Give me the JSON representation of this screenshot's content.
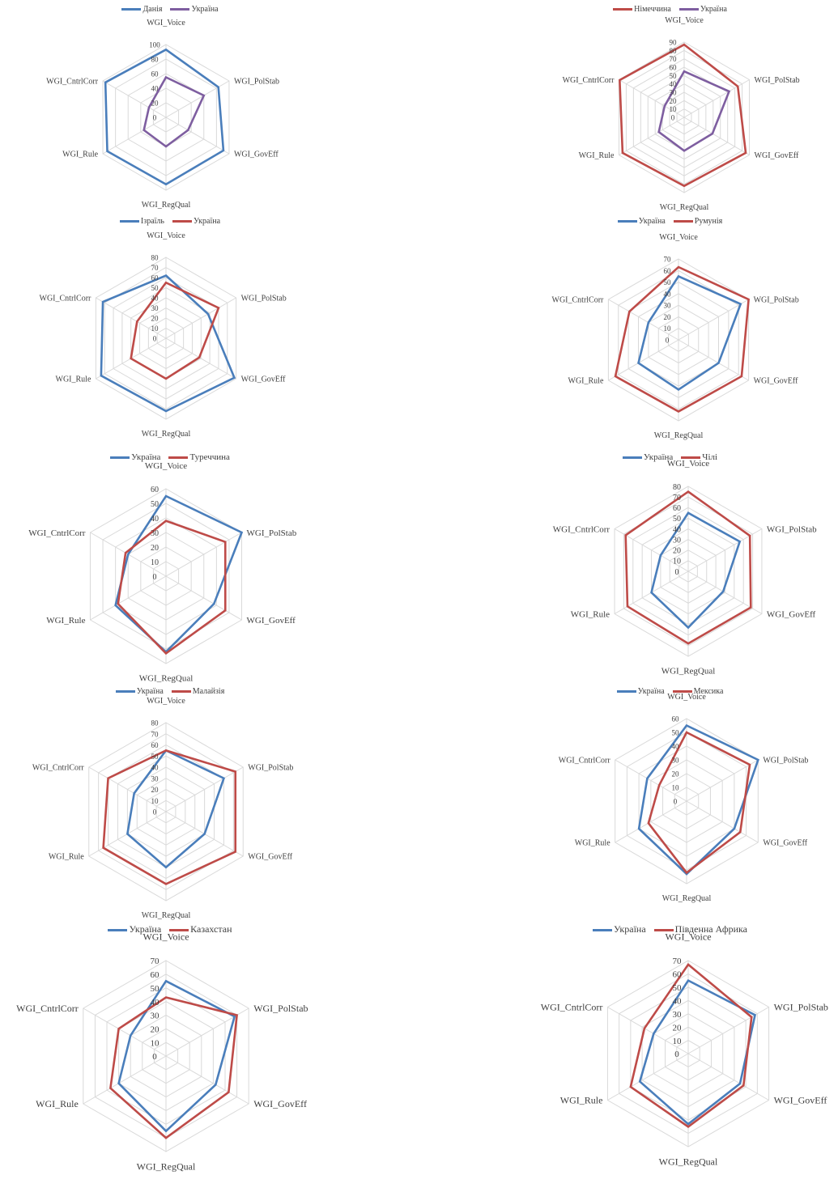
{
  "colors": {
    "blue": "#4a7ebb",
    "red": "#be4b48",
    "purple": "#7e5ea0"
  },
  "chart_data": [
    {
      "type": "radar",
      "axes": [
        "WGI_Voice",
        "WGI_PolStab",
        "WGI_GovEff",
        "WGI_RegQual",
        "WGI_Rule",
        "WGI_CntrlCorr"
      ],
      "rmax": 100,
      "ticks": [
        0,
        20,
        40,
        60,
        80,
        100
      ],
      "legend_position": "top",
      "series": [
        {
          "name": "Данія",
          "color": "#4a7ebb",
          "values": [
            93,
            83,
            91,
            92,
            93,
            96
          ]
        },
        {
          "name": "Україна",
          "color": "#7e5ea0",
          "values": [
            55,
            60,
            35,
            40,
            35,
            27
          ]
        }
      ]
    },
    {
      "type": "radar",
      "axes": [
        "WGI_Voice",
        "WGI_PolStab",
        "WGI_GovEff",
        "WGI_RegQual",
        "WGI_Rule",
        "WGI_CntrlCorr"
      ],
      "rmax": 90,
      "ticks": [
        0,
        10,
        20,
        30,
        40,
        50,
        60,
        70,
        80,
        90
      ],
      "legend_position": "top",
      "series": [
        {
          "name": "Німеччина",
          "color": "#be4b48",
          "values": [
            87,
            74,
            85,
            82,
            85,
            89
          ]
        },
        {
          "name": "Україна",
          "color": "#7e5ea0",
          "values": [
            55,
            62,
            39,
            40,
            35,
            27
          ]
        }
      ]
    },
    {
      "type": "radar",
      "axes": [
        "WGI_Voice",
        "WGI_PolStab",
        "WGI_GovEff",
        "WGI_RegQual",
        "WGI_Rule",
        "WGI_CntrlCorr"
      ],
      "rmax": 80,
      "ticks": [
        0,
        10,
        20,
        30,
        40,
        50,
        60,
        70,
        80
      ],
      "legend_position": "top",
      "series": [
        {
          "name": "Ізраїль",
          "color": "#4a7ebb",
          "values": [
            62,
            48,
            78,
            72,
            74,
            72
          ]
        },
        {
          "name": "Україна",
          "color": "#be4b48",
          "values": [
            55,
            60,
            38,
            40,
            40,
            33
          ]
        }
      ]
    },
    {
      "type": "radar",
      "axes": [
        "WGI_Voice",
        "WGI_PolStab",
        "WGI_GovEff",
        "WGI_RegQual",
        "WGI_Rule",
        "WGI_CntrlCorr"
      ],
      "rmax": 70,
      "ticks": [
        0,
        10,
        20,
        30,
        40,
        50,
        60,
        70
      ],
      "legend_position": "top",
      "series": [
        {
          "name": "Україна",
          "color": "#4a7ebb",
          "values": [
            55,
            62,
            40,
            43,
            40,
            30
          ]
        },
        {
          "name": "Румунія",
          "color": "#be4b48",
          "values": [
            63,
            70,
            63,
            62,
            63,
            49
          ]
        }
      ]
    },
    {
      "type": "radar",
      "axes": [
        "WGI_Voice",
        "WGI_PolStab",
        "WGI_GovEff",
        "WGI_RegQual",
        "WGI_Rule",
        "WGI_CntrlCorr"
      ],
      "rmax": 60,
      "ticks": [
        0,
        10,
        20,
        30,
        40,
        50,
        60
      ],
      "legend_position": "top",
      "series": [
        {
          "name": "Україна",
          "color": "#4a7ebb",
          "values": [
            55,
            60,
            38,
            52,
            40,
            30
          ]
        },
        {
          "name": "Туреччина",
          "color": "#be4b48",
          "values": [
            38,
            47,
            47,
            53,
            38,
            32
          ]
        }
      ]
    },
    {
      "type": "radar",
      "axes": [
        "WGI_Voice",
        "WGI_PolStab",
        "WGI_GovEff",
        "WGI_RegQual",
        "WGI_Rule",
        "WGI_CntrlCorr"
      ],
      "rmax": 80,
      "ticks": [
        0,
        10,
        20,
        30,
        40,
        50,
        60,
        70,
        80
      ],
      "legend_position": "top",
      "series": [
        {
          "name": "Україна",
          "color": "#4a7ebb",
          "values": [
            55,
            56,
            38,
            53,
            40,
            30
          ]
        },
        {
          "name": "Чілі",
          "color": "#be4b48",
          "values": [
            75,
            67,
            68,
            68,
            66,
            68
          ]
        }
      ]
    },
    {
      "type": "radar",
      "axes": [
        "WGI_Voice",
        "WGI_PolStab",
        "WGI_GovEff",
        "WGI_RegQual",
        "WGI_Rule",
        "WGI_CntrlCorr"
      ],
      "rmax": 80,
      "ticks": [
        0,
        10,
        20,
        30,
        40,
        50,
        60,
        70,
        80
      ],
      "legend_position": "top",
      "series": [
        {
          "name": "Україна",
          "color": "#4a7ebb",
          "values": [
            55,
            60,
            40,
            50,
            40,
            33
          ]
        },
        {
          "name": "Малайзія",
          "color": "#be4b48",
          "values": [
            55,
            72,
            72,
            65,
            65,
            60
          ]
        }
      ]
    },
    {
      "type": "radar",
      "axes": [
        "WGI_Voice",
        "WGI_PolStab",
        "WGI_GovEff",
        "WGI_RegQual",
        "WGI_Rule",
        "WGI_CntrlCorr"
      ],
      "rmax": 60,
      "ticks": [
        0,
        10,
        20,
        30,
        40,
        50,
        60
      ],
      "legend_position": "top",
      "series": [
        {
          "name": "Україна",
          "color": "#4a7ebb",
          "values": [
            55,
            60,
            40,
            53,
            40,
            33
          ]
        },
        {
          "name": "Мексика",
          "color": "#be4b48",
          "values": [
            50,
            53,
            45,
            52,
            32,
            23
          ]
        }
      ]
    },
    {
      "type": "radar",
      "axes": [
        "WGI_Voice",
        "WGI_PolStab",
        "WGI_GovEff",
        "WGI_RegQual",
        "WGI_Rule",
        "WGI_CntrlCorr"
      ],
      "rmax": 70,
      "ticks": [
        0,
        10,
        20,
        30,
        40,
        50,
        60,
        70
      ],
      "legend_position": "top",
      "series": [
        {
          "name": "Україна",
          "color": "#4a7ebb",
          "values": [
            55,
            58,
            42,
            55,
            40,
            30
          ]
        },
        {
          "name": "Казахстан",
          "color": "#be4b48",
          "values": [
            43,
            60,
            53,
            60,
            47,
            40
          ]
        }
      ]
    },
    {
      "type": "radar",
      "axes": [
        "WGI_Voice",
        "WGI_PolStab",
        "WGI_GovEff",
        "WGI_RegQual",
        "WGI_Rule",
        "WGI_CntrlCorr"
      ],
      "rmax": 70,
      "ticks": [
        0,
        10,
        20,
        30,
        40,
        50,
        60,
        70
      ],
      "legend_position": "top",
      "series": [
        {
          "name": "Україна",
          "color": "#4a7ebb",
          "values": [
            55,
            58,
            45,
            53,
            42,
            30
          ]
        },
        {
          "name": "Південна Африка",
          "color": "#be4b48",
          "values": [
            67,
            55,
            48,
            55,
            50,
            38
          ]
        }
      ]
    }
  ]
}
